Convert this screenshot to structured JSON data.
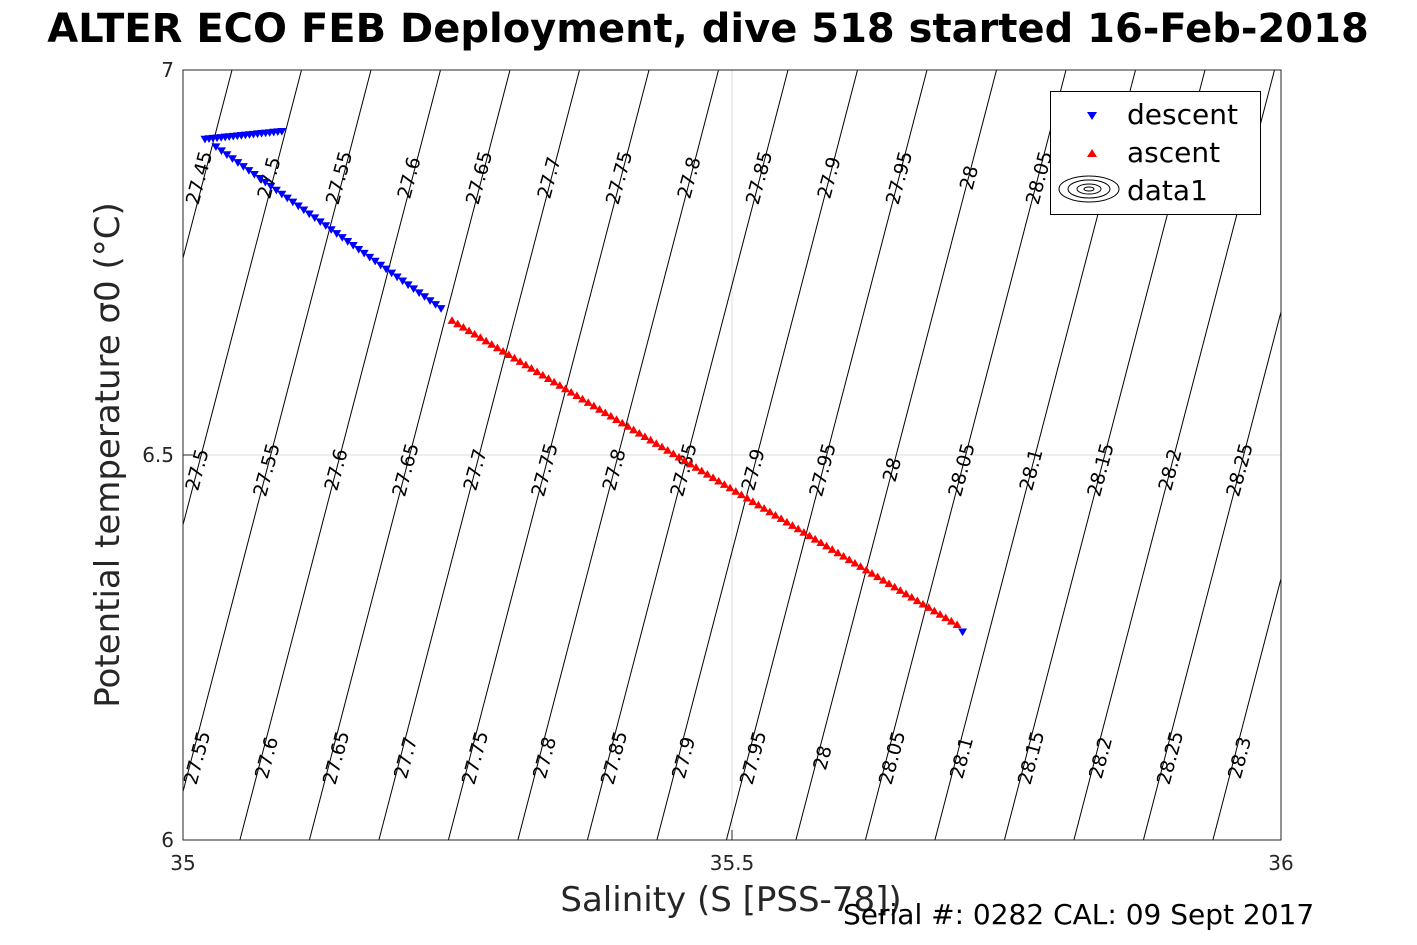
{
  "title": "ALTER ECO FEB Deployment, dive 518 started 16-Feb-2018",
  "footer": "Serial #: 0282  CAL: 09 Sept 2017",
  "chart_data": {
    "type": "scatter",
    "title": "ALTER ECO FEB Deployment, dive 518 started 16-Feb-2018",
    "xlabel": "Salinity (S [PSS-78])",
    "ylabel": "Potential temperature σ0 (°C)",
    "xlim": [
      35,
      36
    ],
    "ylim": [
      6,
      7
    ],
    "xticks": [
      35,
      35.5,
      36
    ],
    "xtick_labels": [
      "35",
      "35.5",
      "36"
    ],
    "yticks": [
      6,
      6.5,
      7
    ],
    "ytick_labels": [
      "6",
      "6.5",
      "7"
    ],
    "grid": true,
    "legend_position": "top-right",
    "series": [
      {
        "name": "descent",
        "marker": "triangle-down",
        "color": "#0000ff",
        "segments": [
          {
            "from": [
              35.02,
              6.91
            ],
            "to": [
              35.09,
              6.92
            ],
            "count": 20
          },
          {
            "from": [
              35.03,
              6.9
            ],
            "to": [
              35.235,
              6.69
            ],
            "count": 42
          },
          {
            "from": [
              35.71,
              6.27
            ],
            "to": [
              35.71,
              6.27
            ],
            "count": 1
          }
        ]
      },
      {
        "name": "ascent",
        "marker": "triangle-up",
        "color": "#ff0000",
        "segments": [
          {
            "from": [
              35.245,
              6.675
            ],
            "to": [
              35.705,
              6.28
            ],
            "count": 90
          }
        ]
      },
      {
        "name": "data1",
        "type": "contour",
        "color": "#000000",
        "levels": [
          27.45,
          27.5,
          27.55,
          27.6,
          27.65,
          27.7,
          27.75,
          27.8,
          27.85,
          27.9,
          27.95,
          28,
          28.05,
          28.1,
          28.15,
          28.2,
          28.25,
          28.3
        ],
        "inline_labels": {
          "top_row": [
            "27.45",
            "27.5",
            "27.55",
            "27.6",
            "27.65",
            "27.7",
            "27.75",
            "27.8",
            "27.85",
            "27.9",
            "27.95",
            "28",
            "28.05"
          ],
          "middle_row": [
            "27.5",
            "27.55",
            "27.6",
            "27.65",
            "27.7",
            "27.75",
            "27.8",
            "27.85",
            "27.9",
            "27.95",
            "28",
            "28.05",
            "28.1",
            "28.15",
            "28.2",
            "28.25"
          ],
          "bottom_row": [
            "27.55",
            "27.6",
            "27.65",
            "27.7",
            "27.75",
            "27.8",
            "27.85",
            "27.9",
            "27.95",
            "28",
            "28.05",
            "28.1",
            "28.15",
            "28.2",
            "28.25",
            "28.3"
          ]
        }
      }
    ]
  }
}
